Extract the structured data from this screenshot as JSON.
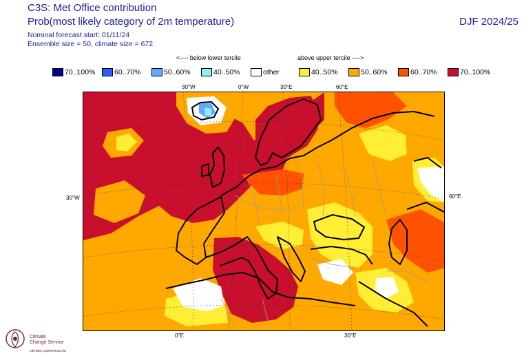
{
  "header": {
    "title_line1": "C3S: Met Office contribution",
    "title_line2": "Prob(most likely category of 2m temperature)",
    "forecast_start": "Nominal forecast start: 01/11/24",
    "ensemble": "Ensemble size = 50, climate size = 672",
    "season": "DJF 2024/25"
  },
  "terciles": {
    "below": "<---- below lower tercile",
    "above": "above upper tercile ---->"
  },
  "legend": [
    {
      "label": "70..100%",
      "color": "#00008b"
    },
    {
      "label": "60..70%",
      "color": "#2f5bff"
    },
    {
      "label": "50..60%",
      "color": "#62a8ff"
    },
    {
      "label": "40..50%",
      "color": "#8cf0f7"
    },
    {
      "label": "other",
      "color": "#ffffff"
    },
    {
      "label": "40..50%",
      "color": "#ffee33"
    },
    {
      "label": "50..60%",
      "color": "#ffa800"
    },
    {
      "label": "60..70%",
      "color": "#ff5200"
    },
    {
      "label": "70..100%",
      "color": "#c8102e"
    }
  ],
  "map": {
    "top_labels": [
      "30°W",
      "0°W",
      "30°E",
      "60°E"
    ],
    "left_label": "30°W",
    "right_label": "60°E",
    "bottom_labels": [
      "0°E",
      "30°E"
    ]
  },
  "branding": {
    "line1": "Climate",
    "line2": "Change Service",
    "url": "climate.copernicus.eu"
  }
}
